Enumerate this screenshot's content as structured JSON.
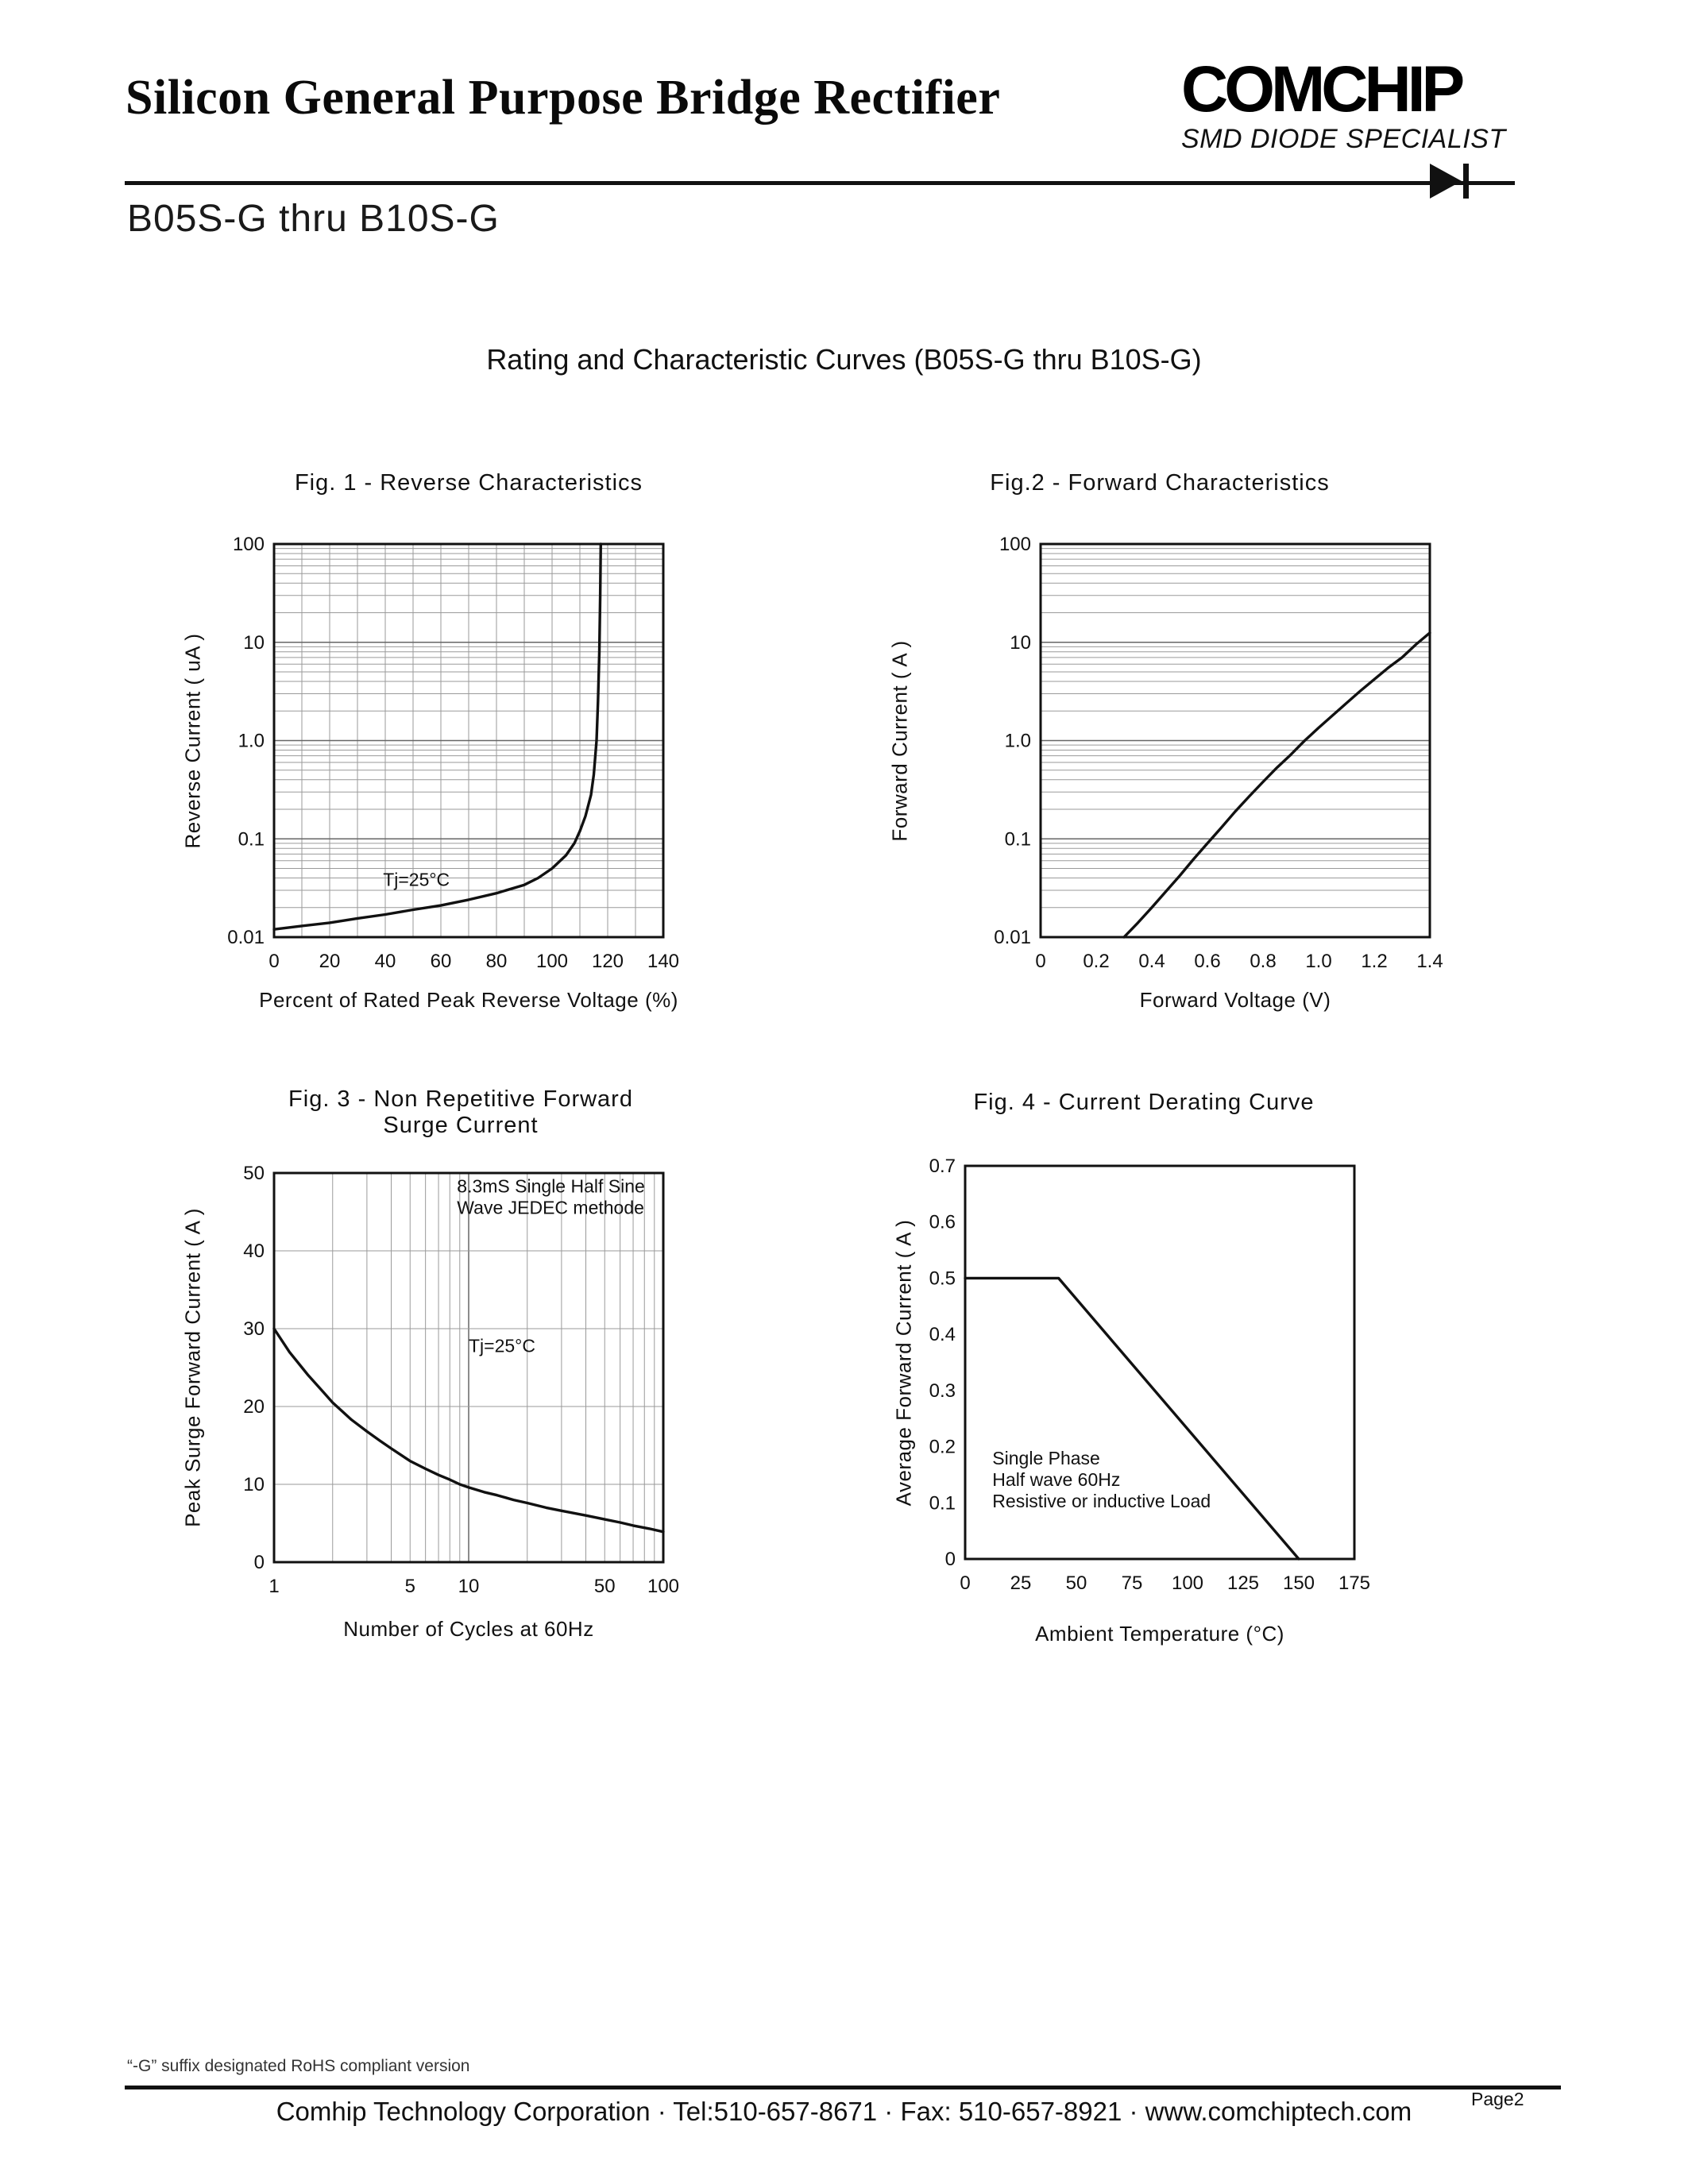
{
  "page": {
    "header": {
      "title": "Silicon General Purpose Bridge Rectifier",
      "logo": {
        "brand": "COMCHIP",
        "tagline": "SMD DIODE SPECIALIST",
        "icon": "diode-icon"
      },
      "part_range": "B05S-G thru B10S-G"
    },
    "section_title": "Rating and Characteristic Curves (B05S-G thru B10S-G)",
    "footer": {
      "note": "“-G” suffix designated RoHS compliant version",
      "company_line": "Comhip Technology Corporation · Tel:510-657-8671 ·  Fax: 510-657-8921 ·  www.comchiptech.com",
      "page": "Page2"
    },
    "colors": {
      "ink": "#111111",
      "grid_minor": "#9a9a9a",
      "grid_major": "#666666"
    }
  },
  "chart_data": [
    {
      "type": "line",
      "title": "Fig. 1 -  Reverse Characteristics",
      "xlabel": "Percent of Rated Peak Reverse Voltage (%)",
      "ylabel": "Reverse Current ( uA )",
      "x": {
        "scale": "linear",
        "min": 0,
        "max": 140,
        "ticks": [
          0,
          20,
          40,
          60,
          80,
          100,
          120,
          140
        ],
        "tick_labels": [
          "0",
          "20",
          "40",
          "60",
          "80",
          "100",
          "120",
          "140"
        ],
        "grid": "step",
        "grid_step": 10
      },
      "y": {
        "scale": "log",
        "min": 0.01,
        "max": 100,
        "ticks": [
          100,
          10,
          1,
          0.1,
          0.01
        ],
        "tick_labels": [
          "100",
          "10",
          "1.0",
          "0.1",
          "0.01"
        ],
        "grid": "log"
      },
      "series": [
        {
          "name": "reverse-current",
          "points": [
            [
              0,
              0.012
            ],
            [
              10,
              0.013
            ],
            [
              20,
              0.014
            ],
            [
              30,
              0.0155
            ],
            [
              40,
              0.017
            ],
            [
              50,
              0.019
            ],
            [
              60,
              0.021
            ],
            [
              70,
              0.024
            ],
            [
              80,
              0.028
            ],
            [
              90,
              0.034
            ],
            [
              95,
              0.04
            ],
            [
              100,
              0.05
            ],
            [
              105,
              0.068
            ],
            [
              108,
              0.09
            ],
            [
              110,
              0.12
            ],
            [
              112,
              0.17
            ],
            [
              114,
              0.28
            ],
            [
              115,
              0.45
            ],
            [
              116,
              1.0
            ],
            [
              116.5,
              2.5
            ],
            [
              117,
              8
            ],
            [
              117.3,
              30
            ],
            [
              117.5,
              100
            ]
          ]
        }
      ],
      "annotations": [
        {
          "lines": [
            "Tj=25°C"
          ],
          "fx": 0.28,
          "fy": 0.87
        }
      ]
    },
    {
      "type": "line",
      "title": "Fig.2 -  Forward Characteristics",
      "xlabel": "Forward Voltage (V)",
      "ylabel": "Forward Current ( A )",
      "x": {
        "scale": "linear",
        "min": 0,
        "max": 1.4,
        "ticks": [
          0,
          0.2,
          0.4,
          0.6,
          0.8,
          1.0,
          1.2,
          1.4
        ],
        "tick_labels": [
          "0",
          "0.2",
          "0.4",
          "0.6",
          "0.8",
          "1.0",
          "1.2",
          "1.4"
        ],
        "grid": "none"
      },
      "y": {
        "scale": "log",
        "min": 0.01,
        "max": 100,
        "ticks": [
          100,
          10,
          1,
          0.1,
          0.01
        ],
        "tick_labels": [
          "100",
          "10",
          "1.0",
          "0.1",
          "0.01"
        ],
        "grid": "log"
      },
      "series": [
        {
          "name": "forward-current",
          "points": [
            [
              0.3,
              0.01
            ],
            [
              0.35,
              0.014
            ],
            [
              0.4,
              0.02
            ],
            [
              0.45,
              0.029
            ],
            [
              0.5,
              0.042
            ],
            [
              0.55,
              0.062
            ],
            [
              0.6,
              0.09
            ],
            [
              0.65,
              0.13
            ],
            [
              0.7,
              0.19
            ],
            [
              0.75,
              0.27
            ],
            [
              0.8,
              0.38
            ],
            [
              0.85,
              0.53
            ],
            [
              0.9,
              0.72
            ],
            [
              0.95,
              1.0
            ],
            [
              1.0,
              1.35
            ],
            [
              1.05,
              1.8
            ],
            [
              1.1,
              2.4
            ],
            [
              1.15,
              3.2
            ],
            [
              1.2,
              4.2
            ],
            [
              1.25,
              5.5
            ],
            [
              1.3,
              7.0
            ],
            [
              1.35,
              9.5
            ],
            [
              1.4,
              12.5
            ]
          ]
        }
      ],
      "annotations": []
    },
    {
      "type": "line",
      "title_line1": "Fig. 3 -  Non Repetitive  Forward",
      "title_line2": "Surge Current",
      "xlabel": "Number of Cycles at 60Hz",
      "ylabel": "Peak Surge Forward Current ( A )",
      "x": {
        "scale": "log",
        "min": 1,
        "max": 100,
        "ticks": [
          1,
          5,
          10,
          50,
          100
        ],
        "tick_labels": [
          "1",
          "5",
          "10",
          "50",
          "100"
        ],
        "grid": "log"
      },
      "y": {
        "scale": "linear",
        "min": 0,
        "max": 50,
        "ticks": [
          0,
          10,
          20,
          30,
          40,
          50
        ],
        "tick_labels": [
          "0",
          "10",
          "20",
          "30",
          "40",
          "50"
        ],
        "grid": "step",
        "grid_step": 10
      },
      "series": [
        {
          "name": "surge-current",
          "points": [
            [
              1,
              30
            ],
            [
              1.2,
              27
            ],
            [
              1.5,
              24
            ],
            [
              1.8,
              21.8
            ],
            [
              2,
              20.5
            ],
            [
              2.5,
              18.3
            ],
            [
              3,
              16.8
            ],
            [
              3.5,
              15.6
            ],
            [
              4,
              14.6
            ],
            [
              5,
              13
            ],
            [
              6,
              12
            ],
            [
              7,
              11.2
            ],
            [
              8,
              10.6
            ],
            [
              9,
              10
            ],
            [
              10,
              9.6
            ],
            [
              12,
              9
            ],
            [
              14,
              8.6
            ],
            [
              17,
              8
            ],
            [
              20,
              7.6
            ],
            [
              25,
              7
            ],
            [
              30,
              6.6
            ],
            [
              40,
              6
            ],
            [
              50,
              5.5
            ],
            [
              60,
              5.1
            ],
            [
              70,
              4.7
            ],
            [
              85,
              4.3
            ],
            [
              100,
              3.9
            ]
          ]
        }
      ],
      "annotations": [
        {
          "lines": [
            "8.3mS Single Half Sine",
            "Wave JEDEC methode"
          ],
          "fx": 0.47,
          "fy": 0.05
        },
        {
          "lines": [
            "Tj=25°C"
          ],
          "fx": 0.5,
          "fy": 0.46
        }
      ]
    },
    {
      "type": "line",
      "title": "Fig. 4 - Current Derating Curve",
      "xlabel": "Ambient Temperature (°C)",
      "ylabel": "Average Forward Current ( A )",
      "x": {
        "scale": "linear",
        "min": 0,
        "max": 175,
        "ticks": [
          0,
          25,
          50,
          75,
          100,
          125,
          150,
          175
        ],
        "tick_labels": [
          "0",
          "25",
          "50",
          "75",
          "100",
          "125",
          "150",
          "175"
        ],
        "grid": "none"
      },
      "y": {
        "scale": "linear",
        "min": 0,
        "max": 0.7,
        "ticks": [
          0,
          0.1,
          0.2,
          0.3,
          0.4,
          0.5,
          0.6,
          0.7
        ],
        "tick_labels": [
          "0",
          "0.1",
          "0.2",
          "0.3",
          "0.4",
          "0.5",
          "0.6",
          "0.7"
        ],
        "grid": "none"
      },
      "series": [
        {
          "name": "derating",
          "points": [
            [
              0,
              0.5
            ],
            [
              42,
              0.5
            ],
            [
              150,
              0
            ]
          ]
        }
      ],
      "annotations": [
        {
          "lines": [
            "Single Phase",
            "Half wave 60Hz",
            "Resistive or inductive Load"
          ],
          "fx": 0.07,
          "fy": 0.76
        }
      ]
    }
  ]
}
